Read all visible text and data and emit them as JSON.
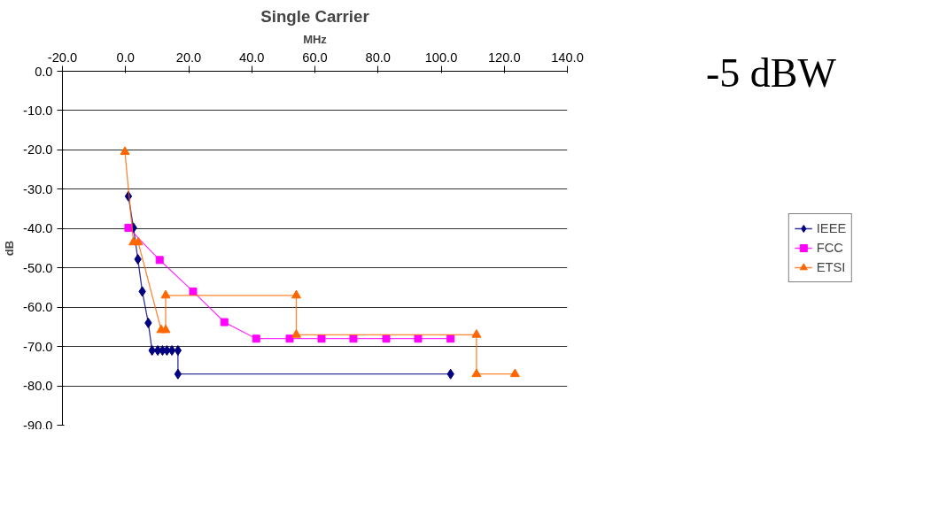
{
  "chart_data": {
    "type": "line",
    "title": "Single Carrier",
    "xlabel": "MHz",
    "ylabel": "dB",
    "xlim": [
      -20,
      140
    ],
    "xticks": [
      {
        "value": -20,
        "label": "-20.0"
      },
      {
        "value": 0,
        "label": "0.0"
      },
      {
        "value": 20,
        "label": "20.0"
      },
      {
        "value": 40,
        "label": "40.0"
      },
      {
        "value": 60,
        "label": "60.0"
      },
      {
        "value": 80,
        "label": "80.0"
      },
      {
        "value": 100,
        "label": "100.0"
      },
      {
        "value": 120,
        "label": "120.0"
      },
      {
        "value": 140,
        "label": "140.0"
      }
    ],
    "ylim": [
      -90,
      0
    ],
    "yticks": [
      {
        "value": 0,
        "label": "0.0"
      },
      {
        "value": -10,
        "label": "-10.0"
      },
      {
        "value": -20,
        "label": "-20.0"
      },
      {
        "value": -30,
        "label": "-30.0"
      },
      {
        "value": -40,
        "label": "-40.0"
      },
      {
        "value": -50,
        "label": "-50.0"
      },
      {
        "value": -60,
        "label": "-60.0"
      },
      {
        "value": -70,
        "label": "-70.0"
      },
      {
        "value": -80,
        "label": "-80.0"
      },
      {
        "value": -90,
        "label": "-90.0"
      }
    ],
    "grid": "y",
    "legend": "right",
    "line_style": "solid",
    "annotations": [
      "-5 dBW"
    ],
    "series": [
      {
        "name": "IEEE",
        "color": "#000080",
        "marker": "diamond",
        "x": [
          0.9,
          2.5,
          3.9,
          5.3,
          7.2,
          8.4,
          10.2,
          11.7,
          13.1,
          14.7,
          16.6,
          16.6,
          103
        ],
        "values": [
          -31.8,
          -39.8,
          -47.8,
          -56,
          -64,
          -71,
          -71,
          -71,
          -71,
          -71,
          -71,
          -77,
          -77
        ]
      },
      {
        "name": "FCC",
        "color": "#ff00ff",
        "marker": "square",
        "x": [
          0.9,
          10.8,
          21.4,
          31.3,
          41.4,
          52,
          62.1,
          72.2,
          82.6,
          92.7,
          103
        ],
        "values": [
          -39.8,
          -48,
          -56,
          -63.8,
          -68,
          -68,
          -68,
          -68,
          -68,
          -68,
          -68
        ]
      },
      {
        "name": "ETSI",
        "color": "#ff6600",
        "marker": "triangle",
        "x": [
          -0.2,
          2.5,
          4,
          11.3,
          12.7,
          12.7,
          54.1,
          54.1,
          111.2,
          111.2,
          123.4
        ],
        "values": [
          -20.5,
          -43.5,
          -43.5,
          -65.8,
          -65.8,
          -57,
          -57,
          -67,
          -67,
          -77,
          -77
        ]
      }
    ]
  }
}
